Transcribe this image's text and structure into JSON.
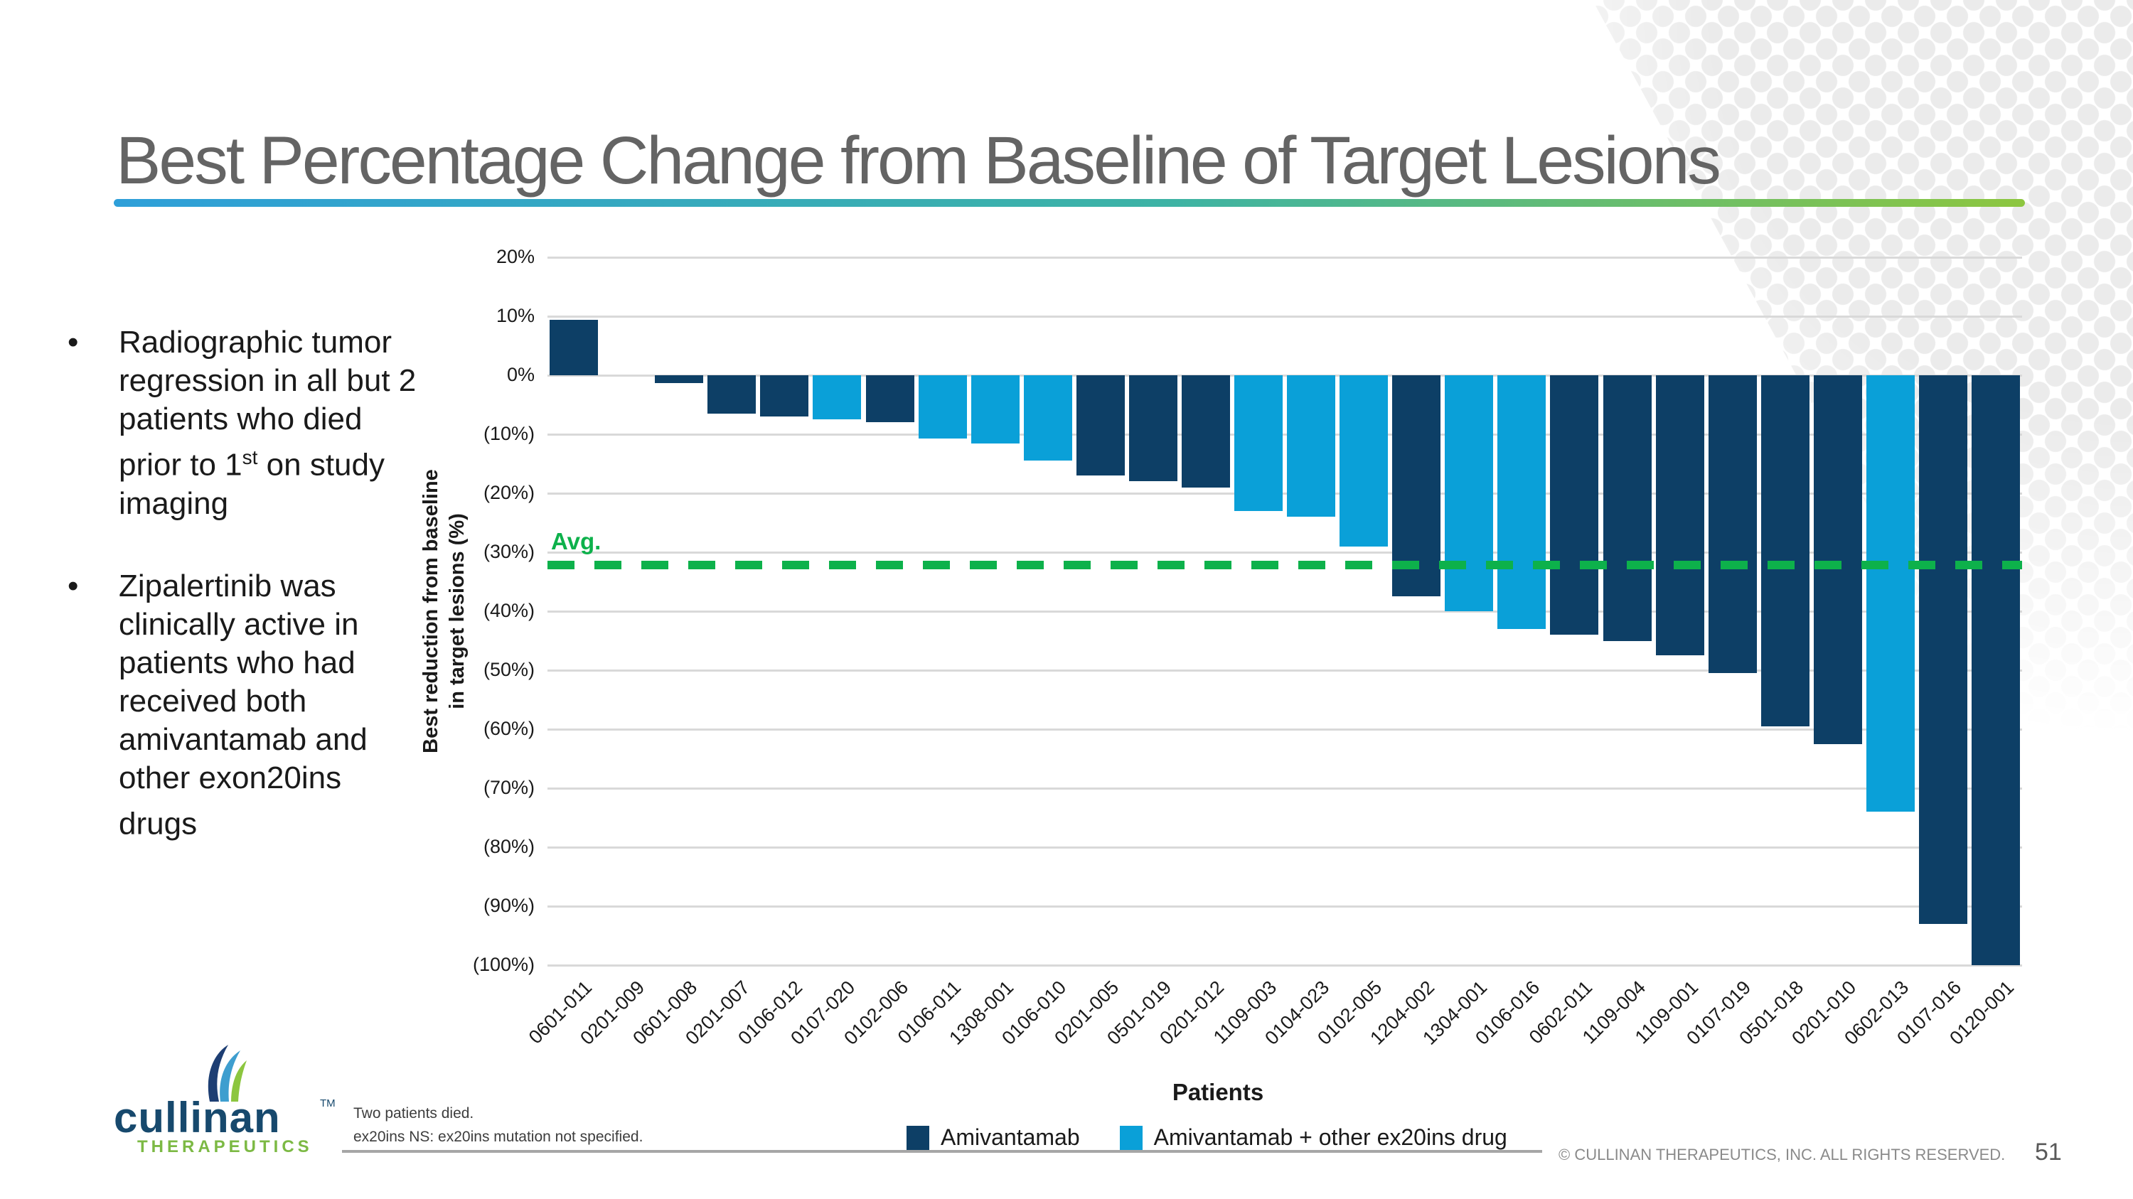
{
  "slide": {
    "title": "Best Percentage Change from Baseline of Target Lesions",
    "page_number": "51",
    "copyright": "© CULLINAN THERAPEUTICS, INC. ALL RIGHTS RESERVED.",
    "footnote_line1": "Two patients died.",
    "footnote_line2": "ex20ins NS: ex20ins mutation not specified."
  },
  "logo": {
    "word": "cullinan",
    "tm": "TM",
    "subtitle": "THERAPEUTICS"
  },
  "bullets": {
    "marker": "•",
    "items": [
      {
        "before": "Radiographic tumor regression in all but 2 patients who died prior to 1",
        "sup": "st",
        "after": " on study imaging"
      },
      {
        "before": "Zipalertinib was clinically active in patients who had received both amivantamab and other exon20ins drugs",
        "sup": "",
        "after": ""
      }
    ]
  },
  "legend": [
    {
      "label": "Amivantamab",
      "color": "#0d3f66"
    },
    {
      "label": "Amivantamab + other ex20ins drug",
      "color": "#0aa0d8"
    }
  ],
  "chart_data": {
    "type": "bar",
    "title": "",
    "xlabel": "Patients",
    "ylabel_line1": "Best reduction from baseline",
    "ylabel_line2": "in target lesions (%)",
    "ylim": [
      -100,
      20
    ],
    "ytick_step": 10,
    "ytick_labels": [
      "20%",
      "10%",
      "0%",
      "(10%)",
      "(20%)",
      "(30%)",
      "(40%)",
      "(50%)",
      "(60%)",
      "(70%)",
      "(80%)",
      "(90%)",
      "(100%)"
    ],
    "grid": true,
    "gridline_color": "#d9d9d9",
    "legend_position": "bottom",
    "avg_line": {
      "label": "Avg.",
      "value": -32.2,
      "color": "#0db14b"
    },
    "categories": [
      "0601-011",
      "0201-009",
      "0601-008",
      "0201-007",
      "0106-012",
      "0107-020",
      "0102-006",
      "0106-011",
      "1308-001",
      "0106-010",
      "0201-005",
      "0501-019",
      "0201-012",
      "1109-003",
      "0104-023",
      "0102-005",
      "1204-002",
      "1304-001",
      "0106-016",
      "0602-011",
      "1109-004",
      "1109-001",
      "0107-019",
      "0501-018",
      "0201-010",
      "0602-013",
      "0107-016",
      "0120-001"
    ],
    "patients": [
      {
        "id": "0601-011",
        "value": 9.4,
        "series": "Amivantamab"
      },
      {
        "id": "0201-009",
        "value": null,
        "series": "Amivantamab"
      },
      {
        "id": "0601-008",
        "value": -1.3,
        "series": "Amivantamab"
      },
      {
        "id": "0201-007",
        "value": -6.5,
        "series": "Amivantamab"
      },
      {
        "id": "0106-012",
        "value": -7,
        "series": "Amivantamab"
      },
      {
        "id": "0107-020",
        "value": -7.5,
        "series": "Amivantamab + other ex20ins drug"
      },
      {
        "id": "0102-006",
        "value": -8,
        "series": "Amivantamab"
      },
      {
        "id": "0106-011",
        "value": -10.7,
        "series": "Amivantamab + other ex20ins drug"
      },
      {
        "id": "1308-001",
        "value": -11.6,
        "series": "Amivantamab + other ex20ins drug"
      },
      {
        "id": "0106-010",
        "value": -14.5,
        "series": "Amivantamab + other ex20ins drug"
      },
      {
        "id": "0201-005",
        "value": -17,
        "series": "Amivantamab"
      },
      {
        "id": "0501-019",
        "value": -18,
        "series": "Amivantamab"
      },
      {
        "id": "0201-012",
        "value": -19,
        "series": "Amivantamab"
      },
      {
        "id": "1109-003",
        "value": -23,
        "series": "Amivantamab + other ex20ins drug"
      },
      {
        "id": "0104-023",
        "value": -24,
        "series": "Amivantamab + other ex20ins drug"
      },
      {
        "id": "0102-005",
        "value": -29,
        "series": "Amivantamab + other ex20ins drug"
      },
      {
        "id": "1204-002",
        "value": -37.5,
        "series": "Amivantamab"
      },
      {
        "id": "1304-001",
        "value": -40,
        "series": "Amivantamab + other ex20ins drug"
      },
      {
        "id": "0106-016",
        "value": -43,
        "series": "Amivantamab + other ex20ins drug"
      },
      {
        "id": "0602-011",
        "value": -44,
        "series": "Amivantamab"
      },
      {
        "id": "1109-004",
        "value": -45,
        "series": "Amivantamab"
      },
      {
        "id": "1109-001",
        "value": -47.5,
        "series": "Amivantamab"
      },
      {
        "id": "0107-019",
        "value": -50.5,
        "series": "Amivantamab"
      },
      {
        "id": "0501-018",
        "value": -59.5,
        "series": "Amivantamab"
      },
      {
        "id": "0201-010",
        "value": -62.5,
        "series": "Amivantamab"
      },
      {
        "id": "0602-013",
        "value": -74,
        "series": "Amivantamab + other ex20ins drug"
      },
      {
        "id": "0107-016",
        "value": -93,
        "series": "Amivantamab"
      },
      {
        "id": "0120-001",
        "value": -100,
        "series": "Amivantamab"
      }
    ]
  }
}
